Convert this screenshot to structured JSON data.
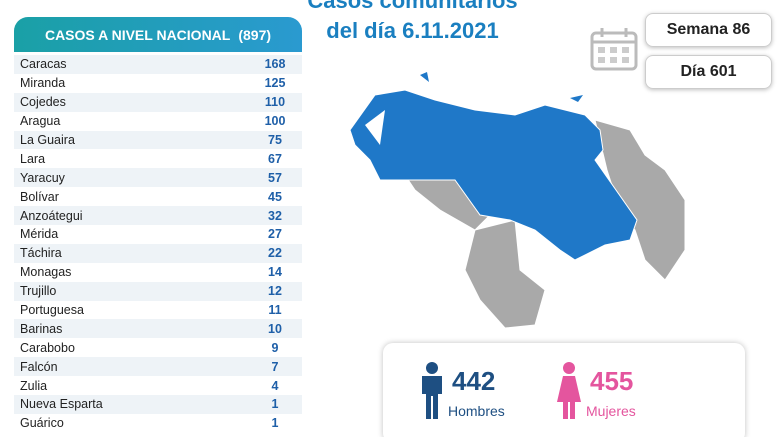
{
  "header": {
    "title_line1": "Casos comunitarios",
    "title_line2": "del día 6.11.2021",
    "week": "Semana 86",
    "day": "Día 601"
  },
  "table": {
    "title": "CASOS A NIVEL NACIONAL",
    "total": "(897)",
    "rows": [
      [
        "Caracas",
        168
      ],
      [
        "Miranda",
        125
      ],
      [
        "Cojedes",
        110
      ],
      [
        "Aragua",
        100
      ],
      [
        "La Guaira",
        75
      ],
      [
        "Lara",
        67
      ],
      [
        "Yaracuy",
        57
      ],
      [
        "Bolívar",
        45
      ],
      [
        "Anzoátegui",
        32
      ],
      [
        "Mérida",
        27
      ],
      [
        "Táchira",
        22
      ],
      [
        "Monagas",
        14
      ],
      [
        "Trujillo",
        12
      ],
      [
        "Portuguesa",
        11
      ],
      [
        "Barinas",
        10
      ],
      [
        "Carabobo",
        9
      ],
      [
        "Falcón",
        7
      ],
      [
        "Zulia",
        4
      ],
      [
        "Nueva Esparta",
        1
      ],
      [
        "Guárico",
        1
      ]
    ]
  },
  "gender": {
    "men": {
      "count": 442,
      "label": "Hombres"
    },
    "women": {
      "count": 455,
      "label": "Mujeres"
    }
  }
}
